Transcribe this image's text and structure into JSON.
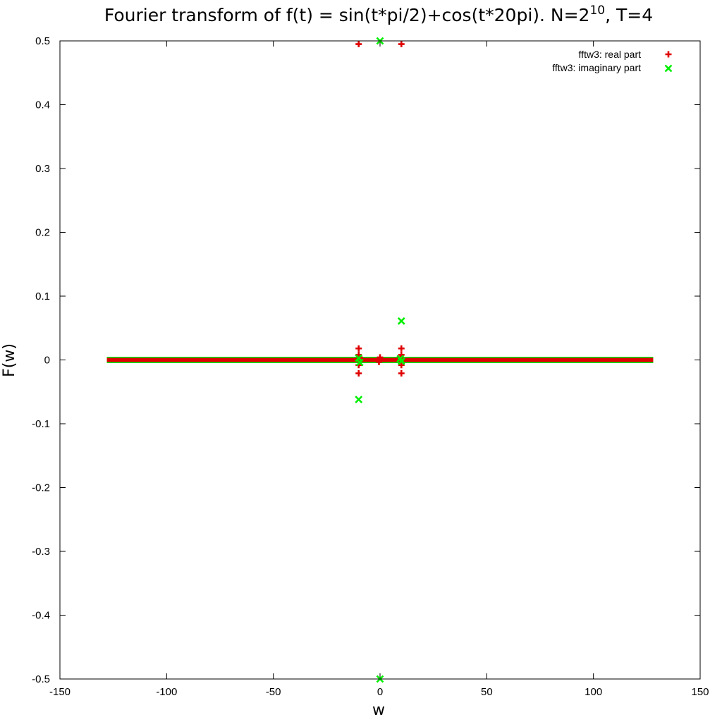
{
  "chart_data": {
    "type": "scatter",
    "title": {
      "prefix": "Fourier transform of f(t) = sin(t*pi/2)+cos(t*20pi). N=2",
      "superscript": "10",
      "suffix": ", T=4"
    },
    "xlabel": "w",
    "ylabel": "F(w)",
    "xlim": [
      -150,
      150
    ],
    "ylim": [
      -0.5,
      0.5
    ],
    "xticks": [
      -150,
      -100,
      -50,
      0,
      50,
      100,
      150
    ],
    "yticks": [
      -0.5,
      -0.4,
      -0.3,
      -0.2,
      -0.1,
      0,
      0.1,
      0.2,
      0.3,
      0.4,
      0.5
    ],
    "xtick_labels": [
      "-150",
      "-100",
      "-50",
      "0",
      "50",
      "100",
      "150"
    ],
    "ytick_labels": [
      "-0.5",
      "-0.4",
      "-0.3",
      "-0.2",
      "-0.1",
      "0",
      "0.1",
      "0.2",
      "0.3",
      "0.4",
      "0.5"
    ],
    "grid": false,
    "legend_position": "top-right",
    "series": [
      {
        "name": "fftw3: real part",
        "marker": "plus",
        "color": "#e00000",
        "baseline": {
          "x_range": [
            -128,
            128
          ],
          "y": 0
        },
        "points": [
          [
            -10,
            0.495
          ],
          [
            10,
            0.495
          ],
          [
            -10,
            0.018
          ],
          [
            -10,
            0.008
          ],
          [
            -10,
            -0.008
          ],
          [
            -10,
            -0.021
          ],
          [
            10,
            0.018
          ],
          [
            10,
            0.008
          ],
          [
            10,
            -0.008
          ],
          [
            10,
            -0.021
          ],
          [
            -9.5,
            0.004
          ],
          [
            9.5,
            0.004
          ],
          [
            0,
            0.004
          ],
          [
            -0.5,
            -0.003
          ]
        ]
      },
      {
        "name": "fftw3: imaginary part",
        "marker": "cross",
        "color": "#00ee00",
        "baseline": {
          "x_range": [
            -128,
            128
          ],
          "y": 0
        },
        "points": [
          [
            0,
            0.5
          ],
          [
            0,
            -0.5
          ],
          [
            10,
            0.061
          ],
          [
            -10,
            -0.062
          ],
          [
            -10,
            0.003
          ],
          [
            10,
            -0.002
          ],
          [
            -9.5,
            -0.004
          ],
          [
            9.5,
            0.002
          ]
        ]
      }
    ]
  }
}
